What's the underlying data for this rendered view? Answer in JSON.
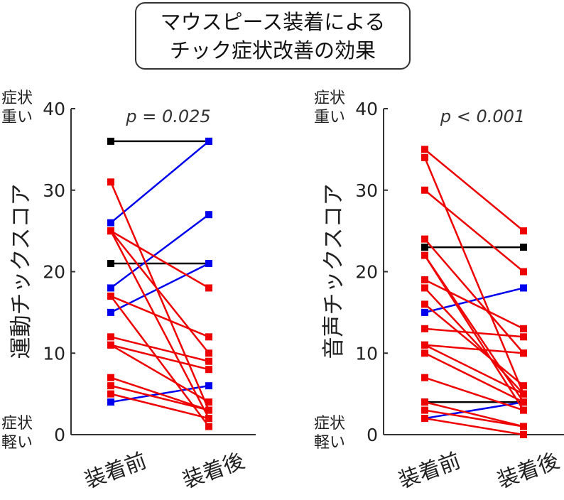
{
  "title_line1": "マウスピース装着による",
  "title_line2": "チック症状改善の効果",
  "chart_data": [
    {
      "type": "line",
      "ylabel": "運動チックスコア",
      "ylim": [
        0,
        40
      ],
      "yticks": [
        0,
        10,
        20,
        30,
        40
      ],
      "categories": [
        "装着前",
        "装着後"
      ],
      "annotation": "p = 0.025",
      "top_label": [
        "症状",
        "重い"
      ],
      "bottom_label": [
        "症状",
        "軽い"
      ],
      "pairs": [
        [
          36,
          36,
          "#000000"
        ],
        [
          21,
          21,
          "#000000"
        ],
        [
          26,
          36,
          "#0000ee"
        ],
        [
          18,
          27,
          "#0000ee"
        ],
        [
          15,
          21,
          "#0000ee"
        ],
        [
          4,
          6,
          "#0000ee"
        ],
        [
          31,
          3,
          "#ee0000"
        ],
        [
          25,
          18,
          "#ee0000"
        ],
        [
          25,
          10,
          "#ee0000"
        ],
        [
          25,
          2,
          "#ee0000"
        ],
        [
          17,
          12,
          "#ee0000"
        ],
        [
          17,
          1,
          "#ee0000"
        ],
        [
          12,
          9,
          "#ee0000"
        ],
        [
          11,
          8,
          "#ee0000"
        ],
        [
          11,
          4,
          "#ee0000"
        ],
        [
          7,
          3,
          "#ee0000"
        ],
        [
          6,
          3,
          "#ee0000"
        ],
        [
          5,
          2,
          "#ee0000"
        ]
      ]
    },
    {
      "type": "line",
      "ylabel": "音声チックスコア",
      "ylim": [
        0,
        40
      ],
      "yticks": [
        0,
        10,
        20,
        30,
        40
      ],
      "categories": [
        "装着前",
        "装着後"
      ],
      "annotation": "p < 0.001",
      "top_label": [
        "症状",
        "重い"
      ],
      "bottom_label": [
        "症状",
        "軽い"
      ],
      "pairs": [
        [
          23,
          23,
          "#000000"
        ],
        [
          4,
          4,
          "#000000"
        ],
        [
          15,
          18,
          "#0000ee"
        ],
        [
          2,
          4,
          "#0000ee"
        ],
        [
          35,
          25,
          "#ee0000"
        ],
        [
          34,
          5,
          "#ee0000"
        ],
        [
          30,
          20,
          "#ee0000"
        ],
        [
          24,
          10,
          "#ee0000"
        ],
        [
          22,
          4,
          "#ee0000"
        ],
        [
          22,
          3,
          "#ee0000"
        ],
        [
          19,
          13,
          "#ee0000"
        ],
        [
          18,
          5,
          "#ee0000"
        ],
        [
          16,
          6,
          "#ee0000"
        ],
        [
          13,
          12,
          "#ee0000"
        ],
        [
          11,
          10,
          "#ee0000"
        ],
        [
          11,
          5,
          "#ee0000"
        ],
        [
          10,
          4,
          "#ee0000"
        ],
        [
          7,
          3,
          "#ee0000"
        ],
        [
          4,
          1,
          "#ee0000"
        ],
        [
          3,
          1,
          "#ee0000"
        ],
        [
          2,
          0,
          "#ee0000"
        ]
      ]
    }
  ]
}
